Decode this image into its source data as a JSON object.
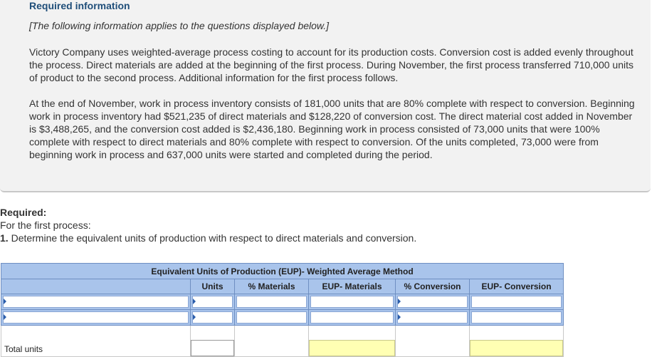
{
  "info": {
    "title": "Required information",
    "note": "[The following information applies to the questions displayed below.]",
    "paragraph1": "Victory Company uses weighted-average process costing to account for its production costs. Conversion cost is added evenly throughout the process. Direct materials are added at the beginning of the first process. During November, the first process transferred 710,000 units of product to the second process. Additional information for the first process follows.",
    "paragraph2": "At the end of November, work in process inventory consists of 181,000 units that are 80% complete with respect to conversion. Beginning work in process inventory had $521,235 of direct materials and $128,220 of conversion cost. The direct material cost added in November is $3,488,265, and the conversion cost added is $2,436,180. Beginning work in process consisted of 73,000 units that were 100% complete with respect to direct materials and 80% complete with respect to conversion. Of the units completed, 73,000 were from beginning work in process and 637,000 units were started and completed during the period."
  },
  "required": {
    "label": "Required:",
    "subtitle": "For the first process:",
    "question_number": "1.",
    "question_text": " Determine the equivalent units of production with respect to direct materials and conversion."
  },
  "table": {
    "title": "Equivalent Units of Production (EUP)- Weighted Average Method",
    "columns": [
      "Units",
      "% Materials",
      "EUP- Materials",
      "% Conversion",
      "EUP- Conversion"
    ],
    "rows": [
      {
        "label": "",
        "units": "",
        "pct_materials": "",
        "eup_materials": "",
        "pct_conversion": "",
        "eup_conversion": ""
      },
      {
        "label": "",
        "units": "",
        "pct_materials": "",
        "eup_materials": "",
        "pct_conversion": "",
        "eup_conversion": ""
      }
    ],
    "total_label": "Total units",
    "colors": {
      "header": "#a9c4eb",
      "total_highlight": "#ffffb3"
    }
  }
}
